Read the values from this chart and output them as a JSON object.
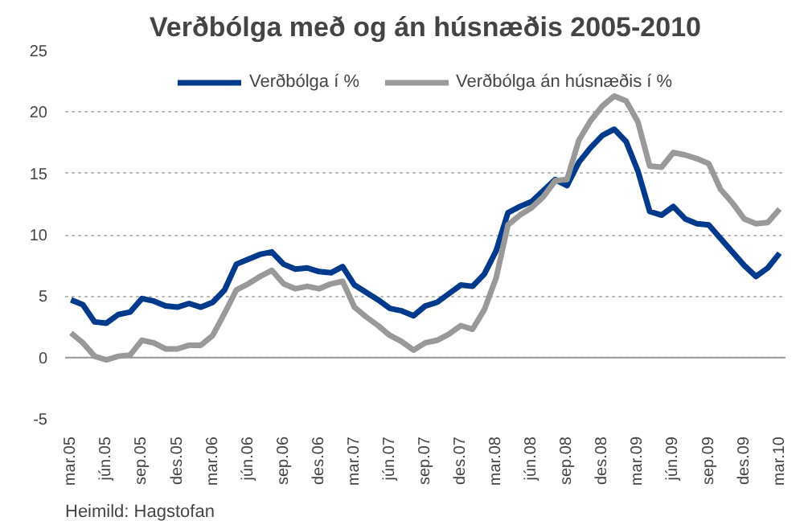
{
  "chart_data": {
    "type": "line",
    "title": "Verðbólga með og án húsnæðis 2005-2010",
    "categories": [
      "mar.05",
      null,
      null,
      "jún.05",
      null,
      null,
      "sep.05",
      null,
      null,
      "des.05",
      null,
      null,
      "mar.06",
      null,
      null,
      "jún.06",
      null,
      null,
      "sep.06",
      null,
      null,
      "des.06",
      null,
      null,
      "mar.07",
      null,
      null,
      "jún.07",
      null,
      null,
      "sep.07",
      null,
      null,
      "des.07",
      null,
      null,
      "mar.08",
      null,
      null,
      "jún.08",
      null,
      null,
      "sep.08",
      null,
      null,
      "des.08",
      null,
      null,
      "mar.09",
      null,
      null,
      "jún.09",
      null,
      null,
      "sep.09",
      null,
      null,
      "des.09",
      null,
      null,
      "mar.10"
    ],
    "series": [
      {
        "name": "Verðbólga í %",
        "color": "#003a8c",
        "values": [
          4.7,
          4.3,
          2.9,
          2.8,
          3.5,
          3.7,
          4.8,
          4.6,
          4.2,
          4.1,
          4.4,
          4.1,
          4.5,
          5.5,
          7.6,
          8.0,
          8.4,
          8.6,
          7.6,
          7.2,
          7.3,
          7.0,
          6.9,
          7.4,
          5.9,
          5.3,
          4.7,
          4.0,
          3.8,
          3.4,
          4.2,
          4.5,
          5.2,
          5.9,
          5.8,
          6.8,
          8.7,
          11.8,
          12.3,
          12.7,
          13.6,
          14.5,
          14.0,
          15.9,
          17.1,
          18.1,
          18.6,
          17.6,
          15.2,
          11.9,
          11.6,
          12.3,
          11.3,
          10.9,
          10.8,
          9.7,
          8.6,
          7.5,
          6.6,
          7.3,
          8.5
        ]
      },
      {
        "name": "Verðbólga án húsnæðis í %",
        "color": "#999999",
        "values": [
          2.0,
          1.2,
          0.1,
          -0.2,
          0.1,
          0.2,
          1.4,
          1.2,
          0.7,
          0.7,
          1.0,
          1.0,
          1.8,
          3.6,
          5.5,
          6.0,
          6.6,
          7.1,
          6.0,
          5.6,
          5.8,
          5.6,
          6.0,
          6.2,
          4.1,
          3.3,
          2.6,
          1.8,
          1.3,
          0.6,
          1.2,
          1.4,
          1.9,
          2.6,
          2.3,
          3.9,
          6.5,
          10.8,
          11.6,
          12.2,
          13.1,
          14.4,
          14.5,
          17.7,
          19.3,
          20.5,
          21.3,
          20.9,
          19.2,
          15.6,
          15.5,
          16.7,
          16.5,
          16.2,
          15.8,
          13.7,
          12.6,
          11.3,
          10.9,
          11.0,
          12.1
        ]
      }
    ],
    "ylim": [
      -5,
      25
    ],
    "yticks": [
      -5,
      0,
      5,
      10,
      15,
      20,
      25
    ],
    "grid": "y",
    "legend": "top",
    "marker": "none",
    "line_style": "solid",
    "annotations": [
      "Heimild: Hagstofan"
    ]
  }
}
